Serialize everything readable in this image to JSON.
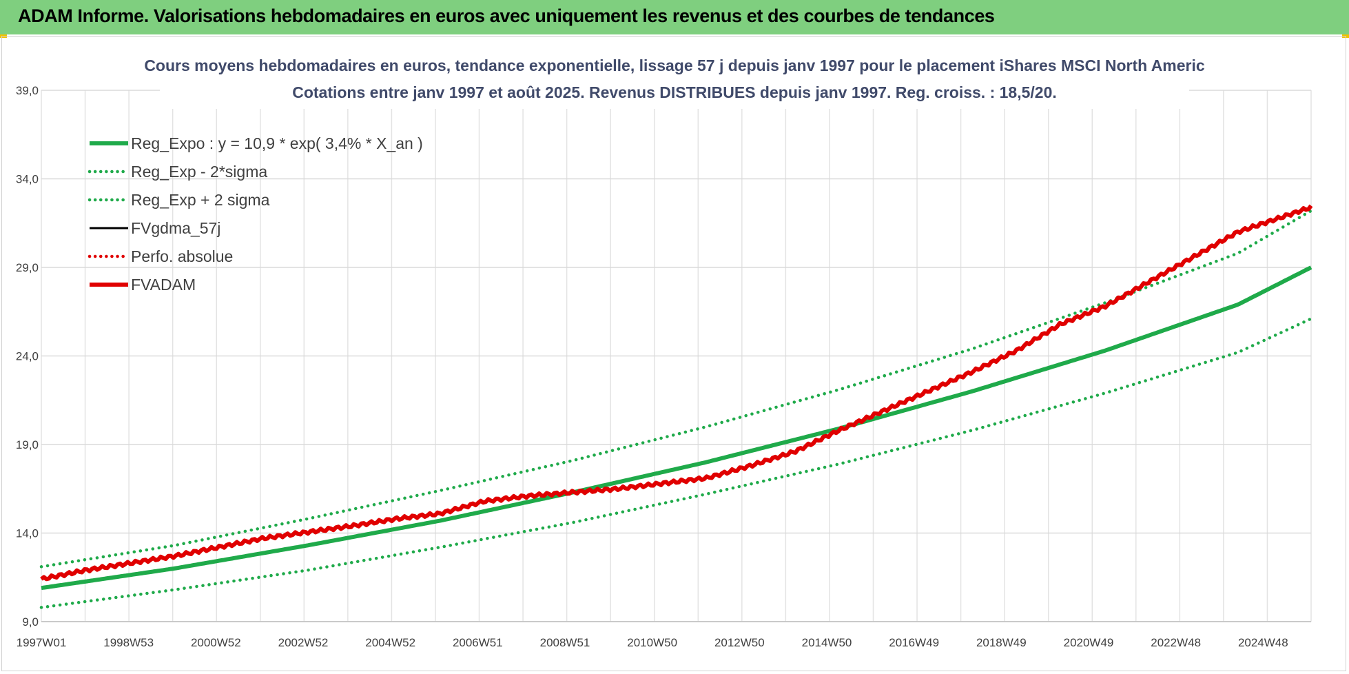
{
  "banner": {
    "title": "ADAM Informe. Valorisations hebdomadaires en euros avec uniquement les revenus et des courbes de tendances"
  },
  "chart_data": {
    "type": "line",
    "title": "Cours moyens hebdomadaires en euros, tendance exponentielle, lissage 57 j depuis janv 1997 pour le placement iShares MSCI North Americ",
    "subtitle": "Cotations entre janv 1997 et août 2025.  Revenus DISTRIBUES depuis janv 1997. Reg. croiss. : 18,5/20.",
    "xlabel": "",
    "ylabel": "",
    "ylim": [
      9.0,
      39.0
    ],
    "y_ticks": [
      "9,0",
      "14,0",
      "19,0",
      "24,0",
      "29,0",
      "34,0",
      "39,0"
    ],
    "x_ticks": [
      "1997W01",
      "1998W53",
      "2000W52",
      "2002W52",
      "2004W52",
      "2006W51",
      "2008W51",
      "2010W50",
      "2012W50",
      "2014W50",
      "2016W49",
      "2018W49",
      "2020W49",
      "2022W48",
      "2024W48"
    ],
    "x_range_years": [
      1997.0,
      2025.65
    ],
    "grid": true,
    "legend_position": "top-left",
    "series": [
      {
        "name": "Reg_Expo : y = 10,9 * exp( 3,4% *  X_an )",
        "color": "#1faa4a",
        "style": "solid-thick",
        "x": [
          1997,
          2000,
          2003,
          2006,
          2009,
          2012,
          2015,
          2018,
          2021,
          2024,
          2025.65
        ],
        "values": [
          10.9,
          12.0,
          13.3,
          14.7,
          16.3,
          18.0,
          19.9,
          22.0,
          24.3,
          26.9,
          29.0
        ]
      },
      {
        "name": "Reg_Exp - 2*sigma",
        "color": "#1faa4a",
        "style": "dotted",
        "x": [
          1997,
          2000,
          2003,
          2006,
          2009,
          2012,
          2015,
          2018,
          2021,
          2024,
          2025.65
        ],
        "values": [
          9.8,
          10.8,
          11.9,
          13.2,
          14.6,
          16.2,
          17.9,
          19.8,
          21.9,
          24.2,
          26.1
        ]
      },
      {
        "name": "Reg_Exp + 2 sigma",
        "color": "#1faa4a",
        "style": "dotted",
        "x": [
          1997,
          2000,
          2003,
          2006,
          2009,
          2012,
          2015,
          2018,
          2021,
          2024,
          2025.65
        ],
        "values": [
          12.1,
          13.3,
          14.8,
          16.4,
          18.1,
          20.0,
          22.1,
          24.4,
          27.0,
          29.8,
          32.2
        ]
      },
      {
        "name": "FVgdma_57j",
        "color": "#000000",
        "style": "solid",
        "x": [],
        "values": []
      },
      {
        "name": "Perfo. absolue",
        "color": "#e00000",
        "style": "dotted",
        "x": [],
        "values": []
      },
      {
        "name": "FVADAM",
        "color": "#e00000",
        "style": "solid-thick",
        "x": [
          1997,
          1998,
          2000,
          2002,
          2004,
          2005,
          2006,
          2007,
          2008,
          2009,
          2010,
          2011,
          2012,
          2013,
          2014,
          2015,
          2016,
          2017,
          2018,
          2019,
          2020,
          2021,
          2022,
          2023,
          2024,
          2025.65
        ],
        "values": [
          11.4,
          11.9,
          12.7,
          13.7,
          14.4,
          14.8,
          15.1,
          15.8,
          16.1,
          16.3,
          16.5,
          16.8,
          17.1,
          17.8,
          18.6,
          19.8,
          20.9,
          22.0,
          23.1,
          24.3,
          25.8,
          26.8,
          28.2,
          29.6,
          31.0,
          32.4
        ]
      }
    ]
  }
}
